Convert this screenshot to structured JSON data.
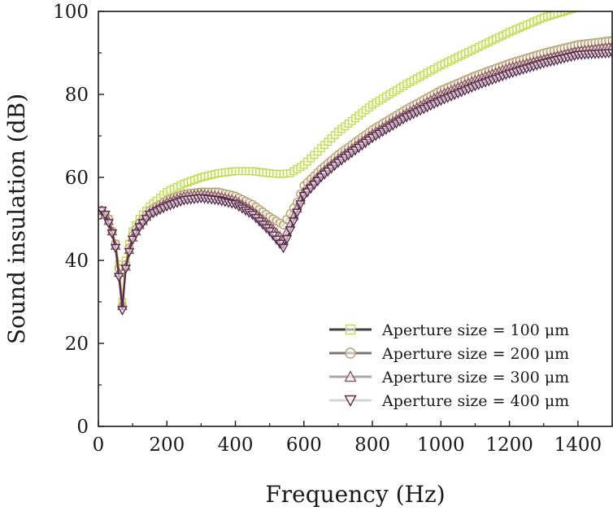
{
  "chart_data": {
    "type": "line",
    "title": "",
    "xlabel": "Frequency (Hz)",
    "ylabel": "Sound insulation (dB)",
    "xlim": [
      0,
      1500
    ],
    "ylim": [
      0,
      100
    ],
    "xticks": [
      "0",
      "200",
      "400",
      "600",
      "800",
      "1000",
      "1200",
      "1400"
    ],
    "yticks": [
      "0",
      "20",
      "40",
      "60",
      "80",
      "100"
    ],
    "legend_position": "bottom-right",
    "series": [
      {
        "name": "Aperture size = 100 μm",
        "color": "#c2db55",
        "marker": "square",
        "x": [
          10,
          20,
          30,
          40,
          50,
          60,
          70,
          80,
          90,
          100,
          120,
          150,
          200,
          250,
          300,
          350,
          400,
          450,
          500,
          530,
          560,
          600,
          650,
          700,
          800,
          900,
          1000,
          1100,
          1200,
          1300,
          1400,
          1500
        ],
        "y": [
          52,
          51,
          50,
          47,
          44,
          39,
          30,
          40,
          44,
          47,
          50,
          53,
          56.5,
          58.5,
          60,
          61,
          61.5,
          61.5,
          61,
          60.8,
          61,
          63,
          67,
          71,
          77.5,
          82.5,
          87,
          91,
          95,
          98.5,
          101,
          103
        ]
      },
      {
        "name": "Aperture size = 200 μm",
        "color": "#b5a070",
        "marker": "circle",
        "x": [
          10,
          20,
          30,
          40,
          50,
          60,
          70,
          80,
          90,
          100,
          120,
          150,
          200,
          250,
          300,
          350,
          400,
          450,
          500,
          540,
          580,
          600,
          650,
          700,
          800,
          900,
          1000,
          1100,
          1200,
          1300,
          1400,
          1500
        ],
        "y": [
          52,
          51,
          50,
          47,
          44,
          38,
          29,
          39,
          43,
          46,
          49,
          52,
          54.5,
          56,
          56.5,
          56.5,
          55.5,
          53.5,
          50.5,
          48.5,
          54,
          58,
          62,
          65.5,
          71.5,
          76.5,
          81,
          84.5,
          87.5,
          90,
          92,
          93
        ]
      },
      {
        "name": "Aperture size = 300 μm",
        "color": "#8e5a60",
        "marker": "triangle-up",
        "x": [
          10,
          20,
          30,
          40,
          50,
          60,
          70,
          80,
          90,
          100,
          120,
          150,
          200,
          250,
          300,
          350,
          400,
          450,
          500,
          540,
          580,
          600,
          650,
          700,
          800,
          900,
          1000,
          1100,
          1200,
          1300,
          1400,
          1500
        ],
        "y": [
          52,
          51,
          49.5,
          47,
          43.5,
          37,
          29,
          38.5,
          42.5,
          45.5,
          48.5,
          51.5,
          54,
          55.5,
          56,
          55.5,
          54.5,
          52,
          48.5,
          45,
          52.5,
          56.5,
          61,
          64.5,
          70.5,
          75.5,
          80,
          83.5,
          86.5,
          88.5,
          90.5,
          91.5
        ]
      },
      {
        "name": "Aperture size = 400 μm",
        "color": "#5a2b4d",
        "marker": "triangle-down",
        "x": [
          10,
          20,
          30,
          40,
          50,
          60,
          70,
          80,
          90,
          100,
          120,
          150,
          200,
          250,
          300,
          350,
          400,
          450,
          500,
          540,
          580,
          600,
          650,
          700,
          800,
          900,
          1000,
          1100,
          1200,
          1300,
          1400,
          1500
        ],
        "y": [
          52,
          51,
          49,
          46.5,
          43,
          36,
          28,
          38,
          42,
          45,
          48,
          51,
          53,
          54.5,
          55,
          54.5,
          53.5,
          51,
          47,
          43,
          51.5,
          55.5,
          60,
          63.5,
          69.5,
          74.5,
          78.5,
          82,
          85,
          87.5,
          89.5,
          90
        ]
      }
    ]
  }
}
